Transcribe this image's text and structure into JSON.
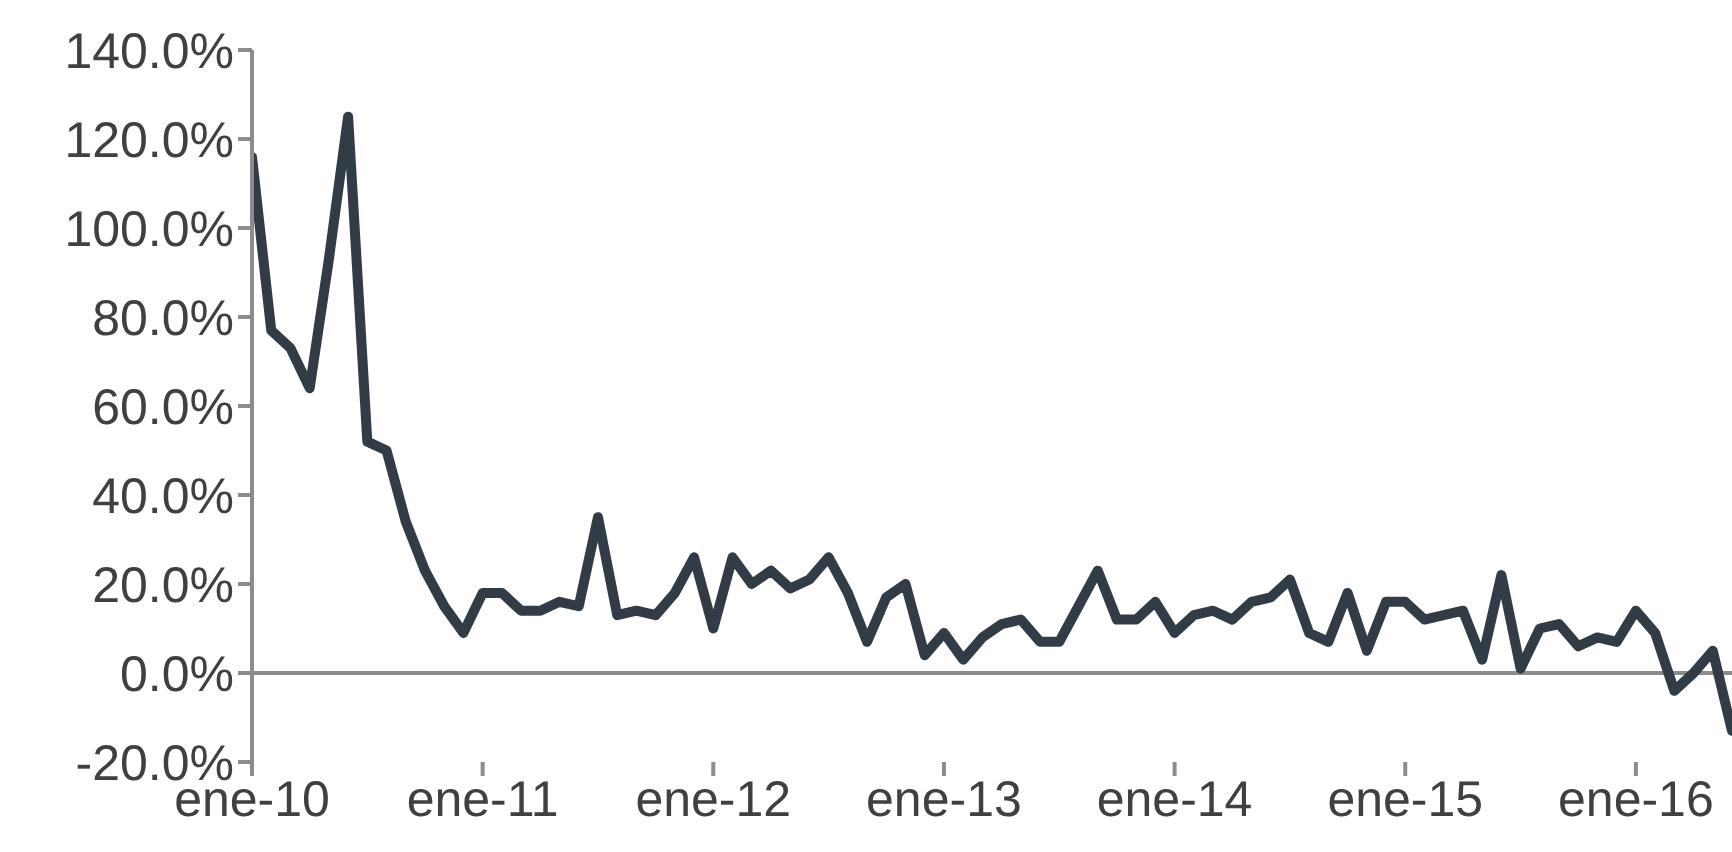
{
  "chart_data": {
    "type": "line",
    "x": [
      "2010-01",
      "2010-02",
      "2010-03",
      "2010-04",
      "2010-05",
      "2010-06",
      "2010-07",
      "2010-08",
      "2010-09",
      "2010-10",
      "2010-11",
      "2010-12",
      "2011-01",
      "2011-02",
      "2011-03",
      "2011-04",
      "2011-05",
      "2011-06",
      "2011-07",
      "2011-08",
      "2011-09",
      "2011-10",
      "2011-11",
      "2011-12",
      "2012-01",
      "2012-02",
      "2012-03",
      "2012-04",
      "2012-05",
      "2012-06",
      "2012-07",
      "2012-08",
      "2012-09",
      "2012-10",
      "2012-11",
      "2012-12",
      "2013-01",
      "2013-02",
      "2013-03",
      "2013-04",
      "2013-05",
      "2013-06",
      "2013-07",
      "2013-08",
      "2013-09",
      "2013-10",
      "2013-11",
      "2013-12",
      "2014-01",
      "2014-02",
      "2014-03",
      "2014-04",
      "2014-05",
      "2014-06",
      "2014-07",
      "2014-08",
      "2014-09",
      "2014-10",
      "2014-11",
      "2014-12",
      "2015-01",
      "2015-02",
      "2015-03",
      "2015-04",
      "2015-05",
      "2015-06",
      "2015-07",
      "2015-08",
      "2015-09",
      "2015-10",
      "2015-11",
      "2015-12",
      "2016-01",
      "2016-02",
      "2016-03",
      "2016-04",
      "2016-05",
      "2016-06"
    ],
    "series": [
      {
        "color": "#323c46",
        "values": [
          116,
          77,
          73,
          64,
          93,
          125,
          52,
          50,
          34,
          23,
          15,
          9,
          18,
          18,
          14,
          14,
          16,
          15,
          35,
          13,
          14,
          13,
          18,
          26,
          10,
          26,
          20,
          23,
          19,
          21,
          26,
          18,
          7,
          17,
          20,
          4,
          9,
          3,
          8,
          11,
          12,
          7,
          7,
          15,
          23,
          12,
          12,
          16,
          9,
          13,
          14,
          12,
          16,
          17,
          21,
          9,
          7,
          18,
          5,
          16,
          16,
          12,
          13,
          14,
          3,
          22,
          1,
          10,
          11,
          6,
          8,
          7,
          14,
          9,
          -4,
          0,
          5,
          -13
        ]
      }
    ],
    "xlim": [
      "2010-01",
      "2016-06"
    ],
    "xticks": [
      {
        "value": "2010-01",
        "label": "ene-10"
      },
      {
        "value": "2011-01",
        "label": "ene-11"
      },
      {
        "value": "2012-01",
        "label": "ene-12"
      },
      {
        "value": "2013-01",
        "label": "ene-13"
      },
      {
        "value": "2014-01",
        "label": "ene-14"
      },
      {
        "value": "2015-01",
        "label": "ene-15"
      },
      {
        "value": "2016-01",
        "label": "ene-16"
      }
    ],
    "ylim": [
      -20,
      140
    ],
    "yticks": [
      {
        "value": -20,
        "label": "-20.0%"
      },
      {
        "value": 0,
        "label": "0.0%"
      },
      {
        "value": 20,
        "label": "20.0%"
      },
      {
        "value": 40,
        "label": "40.0%"
      },
      {
        "value": 60,
        "label": "60.0%"
      },
      {
        "value": 80,
        "label": "80.0%"
      },
      {
        "value": 100,
        "label": "100.0%"
      },
      {
        "value": 120,
        "label": "120.0%"
      },
      {
        "value": 140,
        "label": "140.0%"
      }
    ],
    "grid": false,
    "legend": false,
    "marker": "none",
    "line_style": "solid"
  }
}
